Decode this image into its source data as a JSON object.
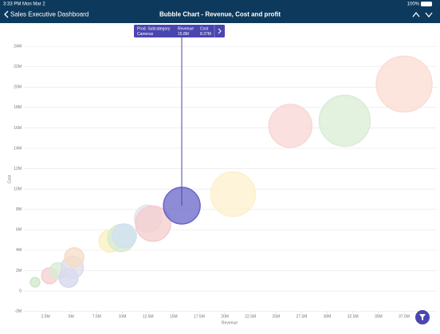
{
  "status_bar": {
    "time": "3:33 PM",
    "date": "Mon Mar 2",
    "battery": "100%"
  },
  "nav": {
    "back": "Sales Executive Dashboard",
    "title": "Bubble Chart - Revenue, Cost and profit"
  },
  "tooltip": {
    "headers": [
      "Prod. Subcategory",
      "Revenue",
      "Cost"
    ],
    "values": [
      "Cameras",
      "15.8M",
      "8.37M"
    ]
  },
  "chart_data": {
    "type": "bubble",
    "xlabel": "Revenue",
    "ylabel": "Cost",
    "x": [
      1480000,
      2900000,
      3700000,
      4750000,
      5100000,
      5300000,
      8800000,
      9900000,
      10200000,
      12500000,
      13000000,
      15800000,
      20800000,
      26400000,
      31700000,
      37500000
    ],
    "values": [
      860000,
      1500000,
      2000000,
      1300000,
      2300000,
      3300000,
      4900000,
      5200000,
      5400000,
      7100000,
      6600000,
      8370000,
      9500000,
      16200000,
      16700000,
      20300000
    ],
    "sizes": [
      6,
      10,
      10,
      12,
      14,
      12,
      14,
      17,
      15,
      17,
      22,
      23,
      28,
      27,
      32,
      35
    ],
    "colors": [
      "#cfe8c8",
      "#f6cfcf",
      "#d8ecd3",
      "#d6d6ef",
      "#dcdcef",
      "#f6dcc4",
      "#fbefc0",
      "#d5ebd0",
      "#cfe0f3",
      "#e3e3ec",
      "#f5cccc",
      "#6a66c9",
      "#fdf0cc",
      "#fad6d6",
      "#d9ecd4",
      "#fbdcd2"
    ],
    "xlim": [
      0,
      41000000
    ],
    "ylim": [
      -2000000,
      26200000
    ],
    "grid": true,
    "xticks": [
      {
        "value": 2500000,
        "label": "2.5M"
      },
      {
        "value": 5000000,
        "label": "5M"
      },
      {
        "value": 7500000,
        "label": "7.5M"
      },
      {
        "value": 10000000,
        "label": "10M"
      },
      {
        "value": 12500000,
        "label": "12.5M"
      },
      {
        "value": 15000000,
        "label": "15M"
      },
      {
        "value": 17500000,
        "label": "17.5M"
      },
      {
        "value": 20000000,
        "label": "20M"
      },
      {
        "value": 22500000,
        "label": "22.5M"
      },
      {
        "value": 25000000,
        "label": "25M"
      },
      {
        "value": 27500000,
        "label": "27.5M"
      },
      {
        "value": 30000000,
        "label": "30M"
      },
      {
        "value": 32500000,
        "label": "32.5M"
      },
      {
        "value": 35000000,
        "label": "35M"
      },
      {
        "value": 37500000,
        "label": "37.5M"
      }
    ],
    "yticks": [
      {
        "value": -2000000,
        "label": "-2M"
      },
      0,
      {
        "value": 2000000,
        "label": "2M"
      },
      {
        "value": 4000000,
        "label": "4M"
      },
      {
        "value": 6000000,
        "label": "6M"
      },
      {
        "value": 8000000,
        "label": "8M"
      },
      {
        "value": 10000000,
        "label": "10M"
      },
      {
        "value": 12000000,
        "label": "12M"
      },
      {
        "value": 14000000,
        "label": "14M"
      },
      {
        "value": 16000000,
        "label": "16M"
      },
      {
        "value": 18000000,
        "label": "18M"
      },
      {
        "value": 20000000,
        "label": "20M"
      },
      {
        "value": 22000000,
        "label": "22M"
      },
      {
        "value": 24000000,
        "label": "24M"
      }
    ]
  }
}
